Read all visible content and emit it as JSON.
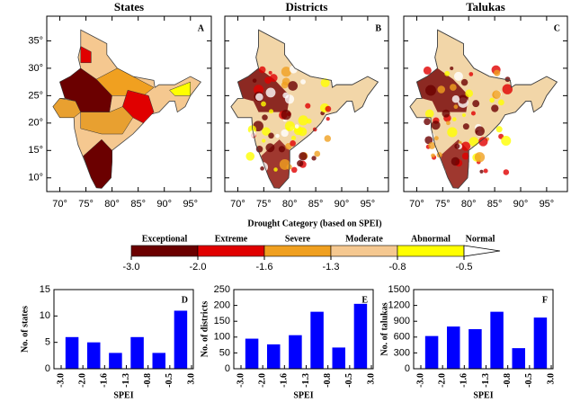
{
  "chart_data": [
    {
      "type": "map",
      "title": "States",
      "letter": "A",
      "xlim": [
        67.5,
        99
      ],
      "ylim": [
        7.5,
        39.5
      ],
      "xticks": [
        {
          "value": 70,
          "label": "70°"
        },
        {
          "value": 75,
          "label": "75°"
        },
        {
          "value": 80,
          "label": "80°"
        },
        {
          "value": 85,
          "label": "85°"
        },
        {
          "value": 90,
          "label": "90°"
        },
        {
          "value": 95,
          "label": "95°"
        }
      ],
      "yticks": [
        {
          "value": 10,
          "label": "10°"
        },
        {
          "value": 15,
          "label": "15°"
        },
        {
          "value": 20,
          "label": "20°"
        },
        {
          "value": 25,
          "label": "25°"
        },
        {
          "value": 30,
          "label": "30°"
        },
        {
          "value": 35,
          "label": "35°"
        }
      ]
    },
    {
      "type": "map",
      "title": "Districts",
      "letter": "B",
      "xlim": [
        67.5,
        99
      ],
      "ylim": [
        7.5,
        39.5
      ],
      "xticks": [
        {
          "value": 70,
          "label": "70°"
        },
        {
          "value": 75,
          "label": "75°"
        },
        {
          "value": 80,
          "label": "80°"
        },
        {
          "value": 85,
          "label": "85°"
        },
        {
          "value": 90,
          "label": "90°"
        },
        {
          "value": 95,
          "label": "95°"
        }
      ]
    },
    {
      "type": "map",
      "title": "Talukas",
      "letter": "C",
      "xlim": [
        67.5,
        99
      ],
      "ylim": [
        7.5,
        39.5
      ],
      "xticks": [
        {
          "value": 70,
          "label": "70°"
        },
        {
          "value": 75,
          "label": "75°"
        },
        {
          "value": 80,
          "label": "80°"
        },
        {
          "value": 85,
          "label": "85°"
        },
        {
          "value": 90,
          "label": "90°"
        },
        {
          "value": 95,
          "label": "95°"
        }
      ]
    },
    {
      "type": "colorbar",
      "title": "Drought Category (based on SPEI)",
      "categories": [
        "Exceptional",
        "Extreme",
        "Severe",
        "Moderate",
        "Abnormal",
        "Normal"
      ],
      "colors": [
        "#6b0000",
        "#e00000",
        "#f0a020",
        "#f5c890",
        "#ffff00",
        "#ffffff"
      ],
      "ticks": [
        {
          "value": -3,
          "label": "-3.0"
        },
        {
          "value": -2,
          "label": "-2.0"
        },
        -1.6,
        -1.3,
        -0.8,
        -0.5
      ]
    },
    {
      "type": "histogram",
      "letter": "D",
      "ylabel": "No. of states",
      "xlabel": "SPEI",
      "color": "#0000ff",
      "bins": [
        {
          "value": -3,
          "label": "-3.0"
        },
        {
          "value": -2,
          "label": "-2.0"
        },
        -1.6,
        -1.3,
        -0.8,
        -0.5,
        {
          "value": 3,
          "label": "3.0"
        }
      ],
      "values": [
        6,
        5,
        3,
        6,
        3,
        11
      ],
      "ylim": [
        0,
        15
      ],
      "yticks": [
        0,
        5,
        10,
        15
      ]
    },
    {
      "type": "histogram",
      "letter": "E",
      "ylabel": "No. of districts",
      "xlabel": "SPEI",
      "color": "#0000ff",
      "bins": [
        {
          "value": -3,
          "label": "-3.0"
        },
        {
          "value": -2,
          "label": "-2.0"
        },
        -1.6,
        -1.3,
        -0.8,
        -0.5,
        {
          "value": 3,
          "label": "3.0"
        }
      ],
      "values": [
        95,
        77,
        106,
        180,
        67,
        205
      ],
      "ylim": [
        0,
        250
      ],
      "yticks": [
        0,
        50,
        100,
        150,
        200,
        250
      ]
    },
    {
      "type": "histogram",
      "letter": "F",
      "ylabel": "No. of talukas",
      "xlabel": "SPEI",
      "color": "#0000ff",
      "bins": [
        {
          "value": -3,
          "label": "-3.0"
        },
        {
          "value": -2,
          "label": "-2.0"
        },
        -1.6,
        -1.3,
        -0.8,
        -0.5,
        {
          "value": 3,
          "label": "3.0"
        }
      ],
      "values": [
        620,
        800,
        750,
        1080,
        390,
        970
      ],
      "ylim": [
        0,
        1500
      ],
      "yticks": [
        0,
        300,
        600,
        900,
        1200,
        1500
      ]
    }
  ]
}
